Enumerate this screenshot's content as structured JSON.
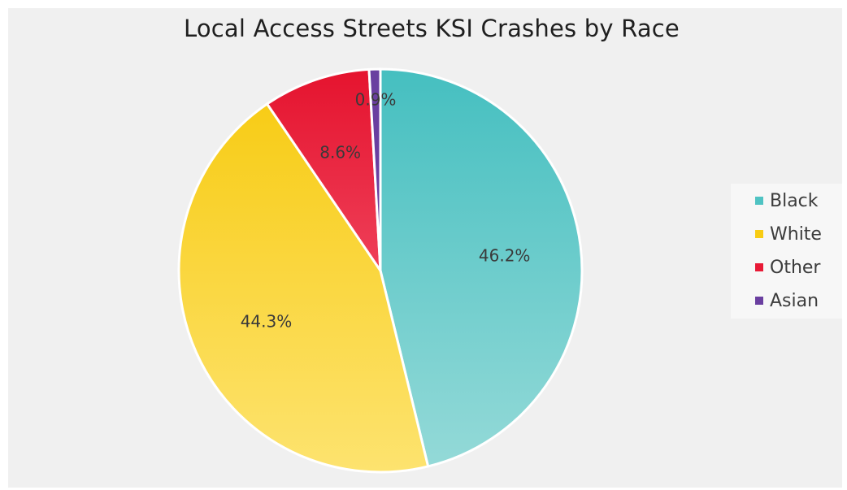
{
  "chart_data": {
    "type": "pie",
    "title": "Local Access Streets KSI Crashes by Race",
    "legend_position": "right",
    "slices": [
      {
        "label": "Black",
        "value": 46.2,
        "data_label": "46.2%",
        "color_top": "#45bfc0",
        "color_bottom": "#95dad8"
      },
      {
        "label": "White",
        "value": 44.3,
        "data_label": "44.3%",
        "color_top": "#f7ca0e",
        "color_bottom": "#fde36f"
      },
      {
        "label": "Other",
        "value": 8.6,
        "data_label": "8.6%",
        "color_top": "#e5132e",
        "color_bottom": "#f86c83"
      },
      {
        "label": "Asian",
        "value": 0.9,
        "data_label": "0.9%",
        "color_top": "#6a3fa0",
        "color_bottom": "#6a3fa0"
      }
    ]
  }
}
